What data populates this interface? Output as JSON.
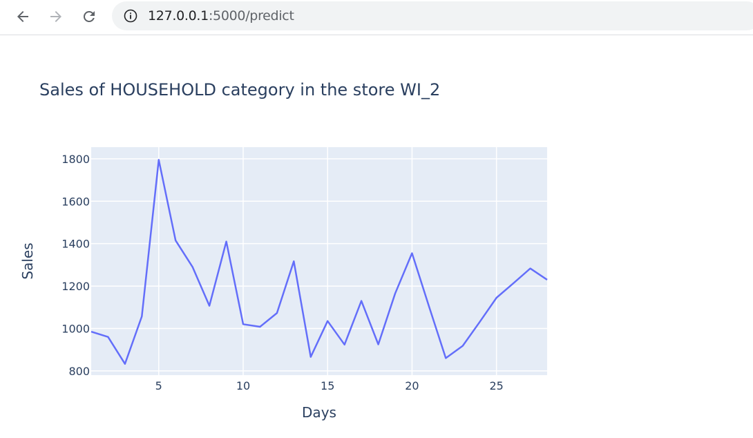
{
  "browser": {
    "url_host": "127.0.0.1",
    "url_rest": ":5000/predict",
    "icons": [
      "back-arrow-icon",
      "forward-arrow-icon",
      "reload-icon",
      "info-icon"
    ]
  },
  "chart_data": {
    "type": "line",
    "title": "Sales of HOUSEHOLD category in the store WI_2",
    "xlabel": "Days",
    "ylabel": "Sales",
    "xlim": [
      1,
      28
    ],
    "ylim": [
      780,
      1855
    ],
    "x_ticks": [
      5,
      10,
      15,
      20,
      25
    ],
    "y_ticks": [
      800,
      1000,
      1200,
      1400,
      1600,
      1800
    ],
    "grid": true,
    "plot_bg": "#e5ecf6",
    "line_color": "#636efa",
    "x": [
      1,
      2,
      3,
      4,
      5,
      6,
      7,
      8,
      9,
      10,
      11,
      12,
      13,
      14,
      15,
      16,
      17,
      18,
      19,
      20,
      21,
      22,
      23,
      24,
      25,
      26,
      27,
      28
    ],
    "y": [
      985,
      960,
      833,
      1057,
      1795,
      1415,
      1290,
      1107,
      1410,
      1020,
      1008,
      1073,
      1317,
      866,
      1035,
      924,
      1130,
      925,
      1165,
      1355,
      1105,
      860,
      918,
      1030,
      1145,
      1213,
      1283,
      1230
    ]
  }
}
